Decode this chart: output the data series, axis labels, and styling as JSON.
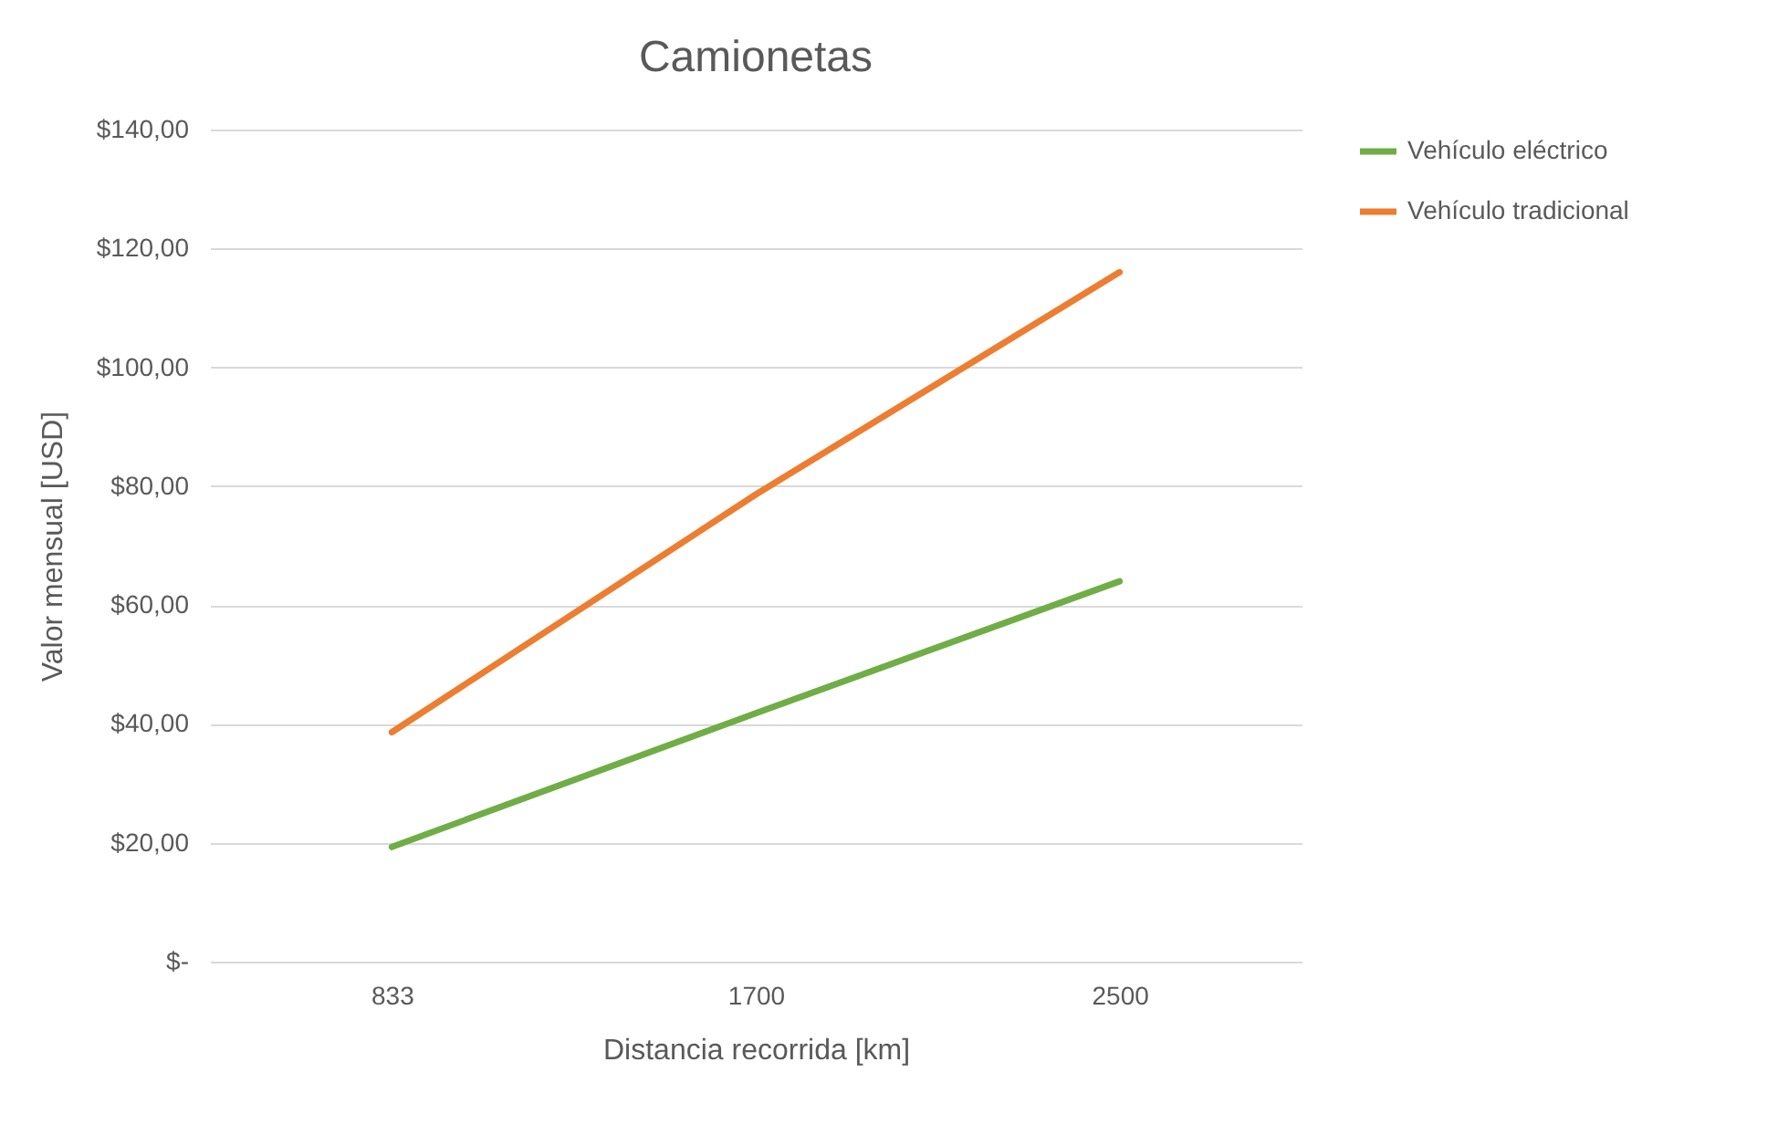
{
  "chart_data": {
    "type": "line",
    "title": "Camionetas",
    "xlabel": "Distancia recorrida [km]",
    "ylabel": "Valor mensual [USD]",
    "categories": [
      "833",
      "1700",
      "2500"
    ],
    "series": [
      {
        "name": "Vehículo eléctrico",
        "color": "#70ad47",
        "values": [
          19.3,
          41.8,
          64
        ]
      },
      {
        "name": "Vehículo tradicional",
        "color": "#ed7d31",
        "values": [
          38.6,
          78.6,
          116
        ]
      }
    ],
    "ylim": [
      0,
      140
    ],
    "yticks": [
      {
        "value": 0,
        "label": "$-"
      },
      {
        "value": 20,
        "label": "$20,00"
      },
      {
        "value": 40,
        "label": "$40,00"
      },
      {
        "value": 60,
        "label": "$60,00"
      },
      {
        "value": 80,
        "label": "$80,00"
      },
      {
        "value": 100,
        "label": "$100,00"
      },
      {
        "value": 120,
        "label": "$120,00"
      },
      {
        "value": 140,
        "label": "$140,00"
      }
    ],
    "grid": "y",
    "legend": "right",
    "marker": "none",
    "line_style": "solid"
  }
}
